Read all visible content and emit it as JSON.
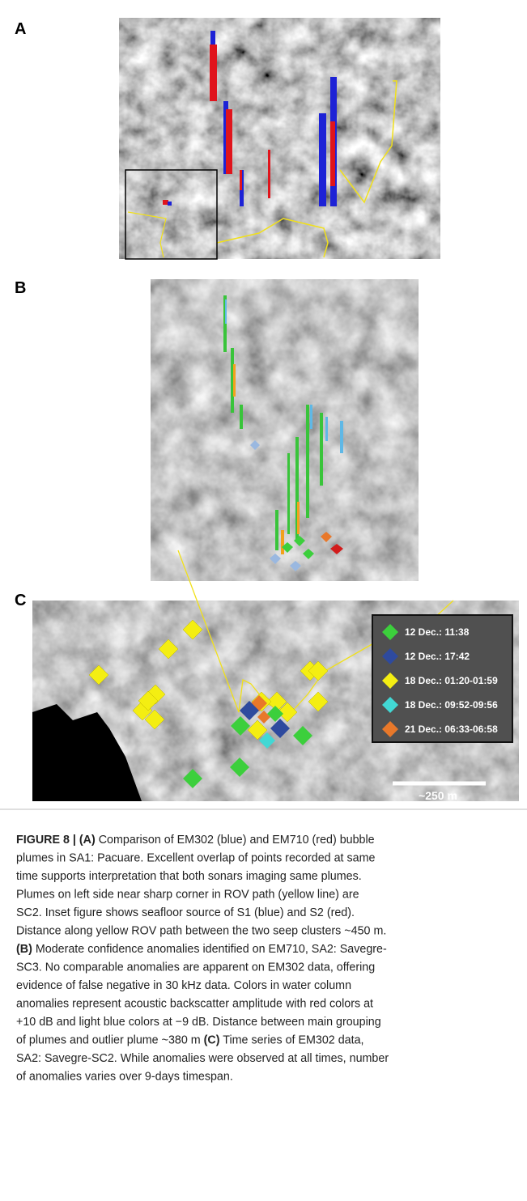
{
  "panels": {
    "a": {
      "label": "A"
    },
    "b": {
      "label": "B"
    },
    "c": {
      "label": "C",
      "scale_bar": "~250 m",
      "legend": [
        {
          "label": "12 Dec.: 11:38",
          "color": "#3ccf3c"
        },
        {
          "label": "12 Dec.: 17:42",
          "color": "#2e4a9e"
        },
        {
          "label": "18 Dec.: 01:20-01:59",
          "color": "#f4ee12"
        },
        {
          "label": "18 Dec.: 09:52-09:56",
          "color": "#42d8d4"
        },
        {
          "label": "21 Dec.: 06:33-06:58",
          "color": "#e8782a"
        }
      ]
    }
  },
  "caption": {
    "lines": [
      [
        {
          "text": "FIGURE 8 | (A)",
          "bold": true
        },
        {
          "text": " Comparison of EM302 (blue) and EM710 (red) bubble"
        }
      ],
      [
        {
          "text": "plumes in SA1: Pacuare. Excellent overlap of points recorded at same"
        }
      ],
      [
        {
          "text": "time supports interpretation that both sonars imaging same plumes."
        }
      ],
      [
        {
          "text": "Plumes on left side near sharp corner in ROV path (yellow line) are"
        }
      ],
      [
        {
          "text": "SC2. Inset figure shows seafloor source of S1 (blue) and S2 (red)."
        }
      ],
      [
        {
          "text": "Distance along yellow ROV path between the two seep clusters ~450 m."
        }
      ],
      [
        {
          "text": "(B)",
          "bold": true
        },
        {
          "text": " Moderate confidence anomalies identified on EM710, SA2: Savegre-"
        }
      ],
      [
        {
          "text": "SC3. No comparable anomalies are apparent on EM302 data, offering"
        }
      ],
      [
        {
          "text": "evidence of false negative in 30 kHz data. Colors in water column"
        }
      ],
      [
        {
          "text": "anomalies represent acoustic backscatter amplitude with red colors at"
        }
      ],
      [
        {
          "text": "+10 dB and light blue colors at −9 dB. Distance between main grouping"
        }
      ],
      [
        {
          "text": "of plumes and outlier plume ~380 m "
        },
        {
          "text": "(C)",
          "bold": true
        },
        {
          "text": " Time series of EM302 data,"
        }
      ],
      [
        {
          "text": "SA2: Savegre-SC2. While anomalies were observed at all times, number"
        }
      ],
      [
        {
          "text": "of anomalies varies over 9-days timespan."
        }
      ]
    ]
  }
}
